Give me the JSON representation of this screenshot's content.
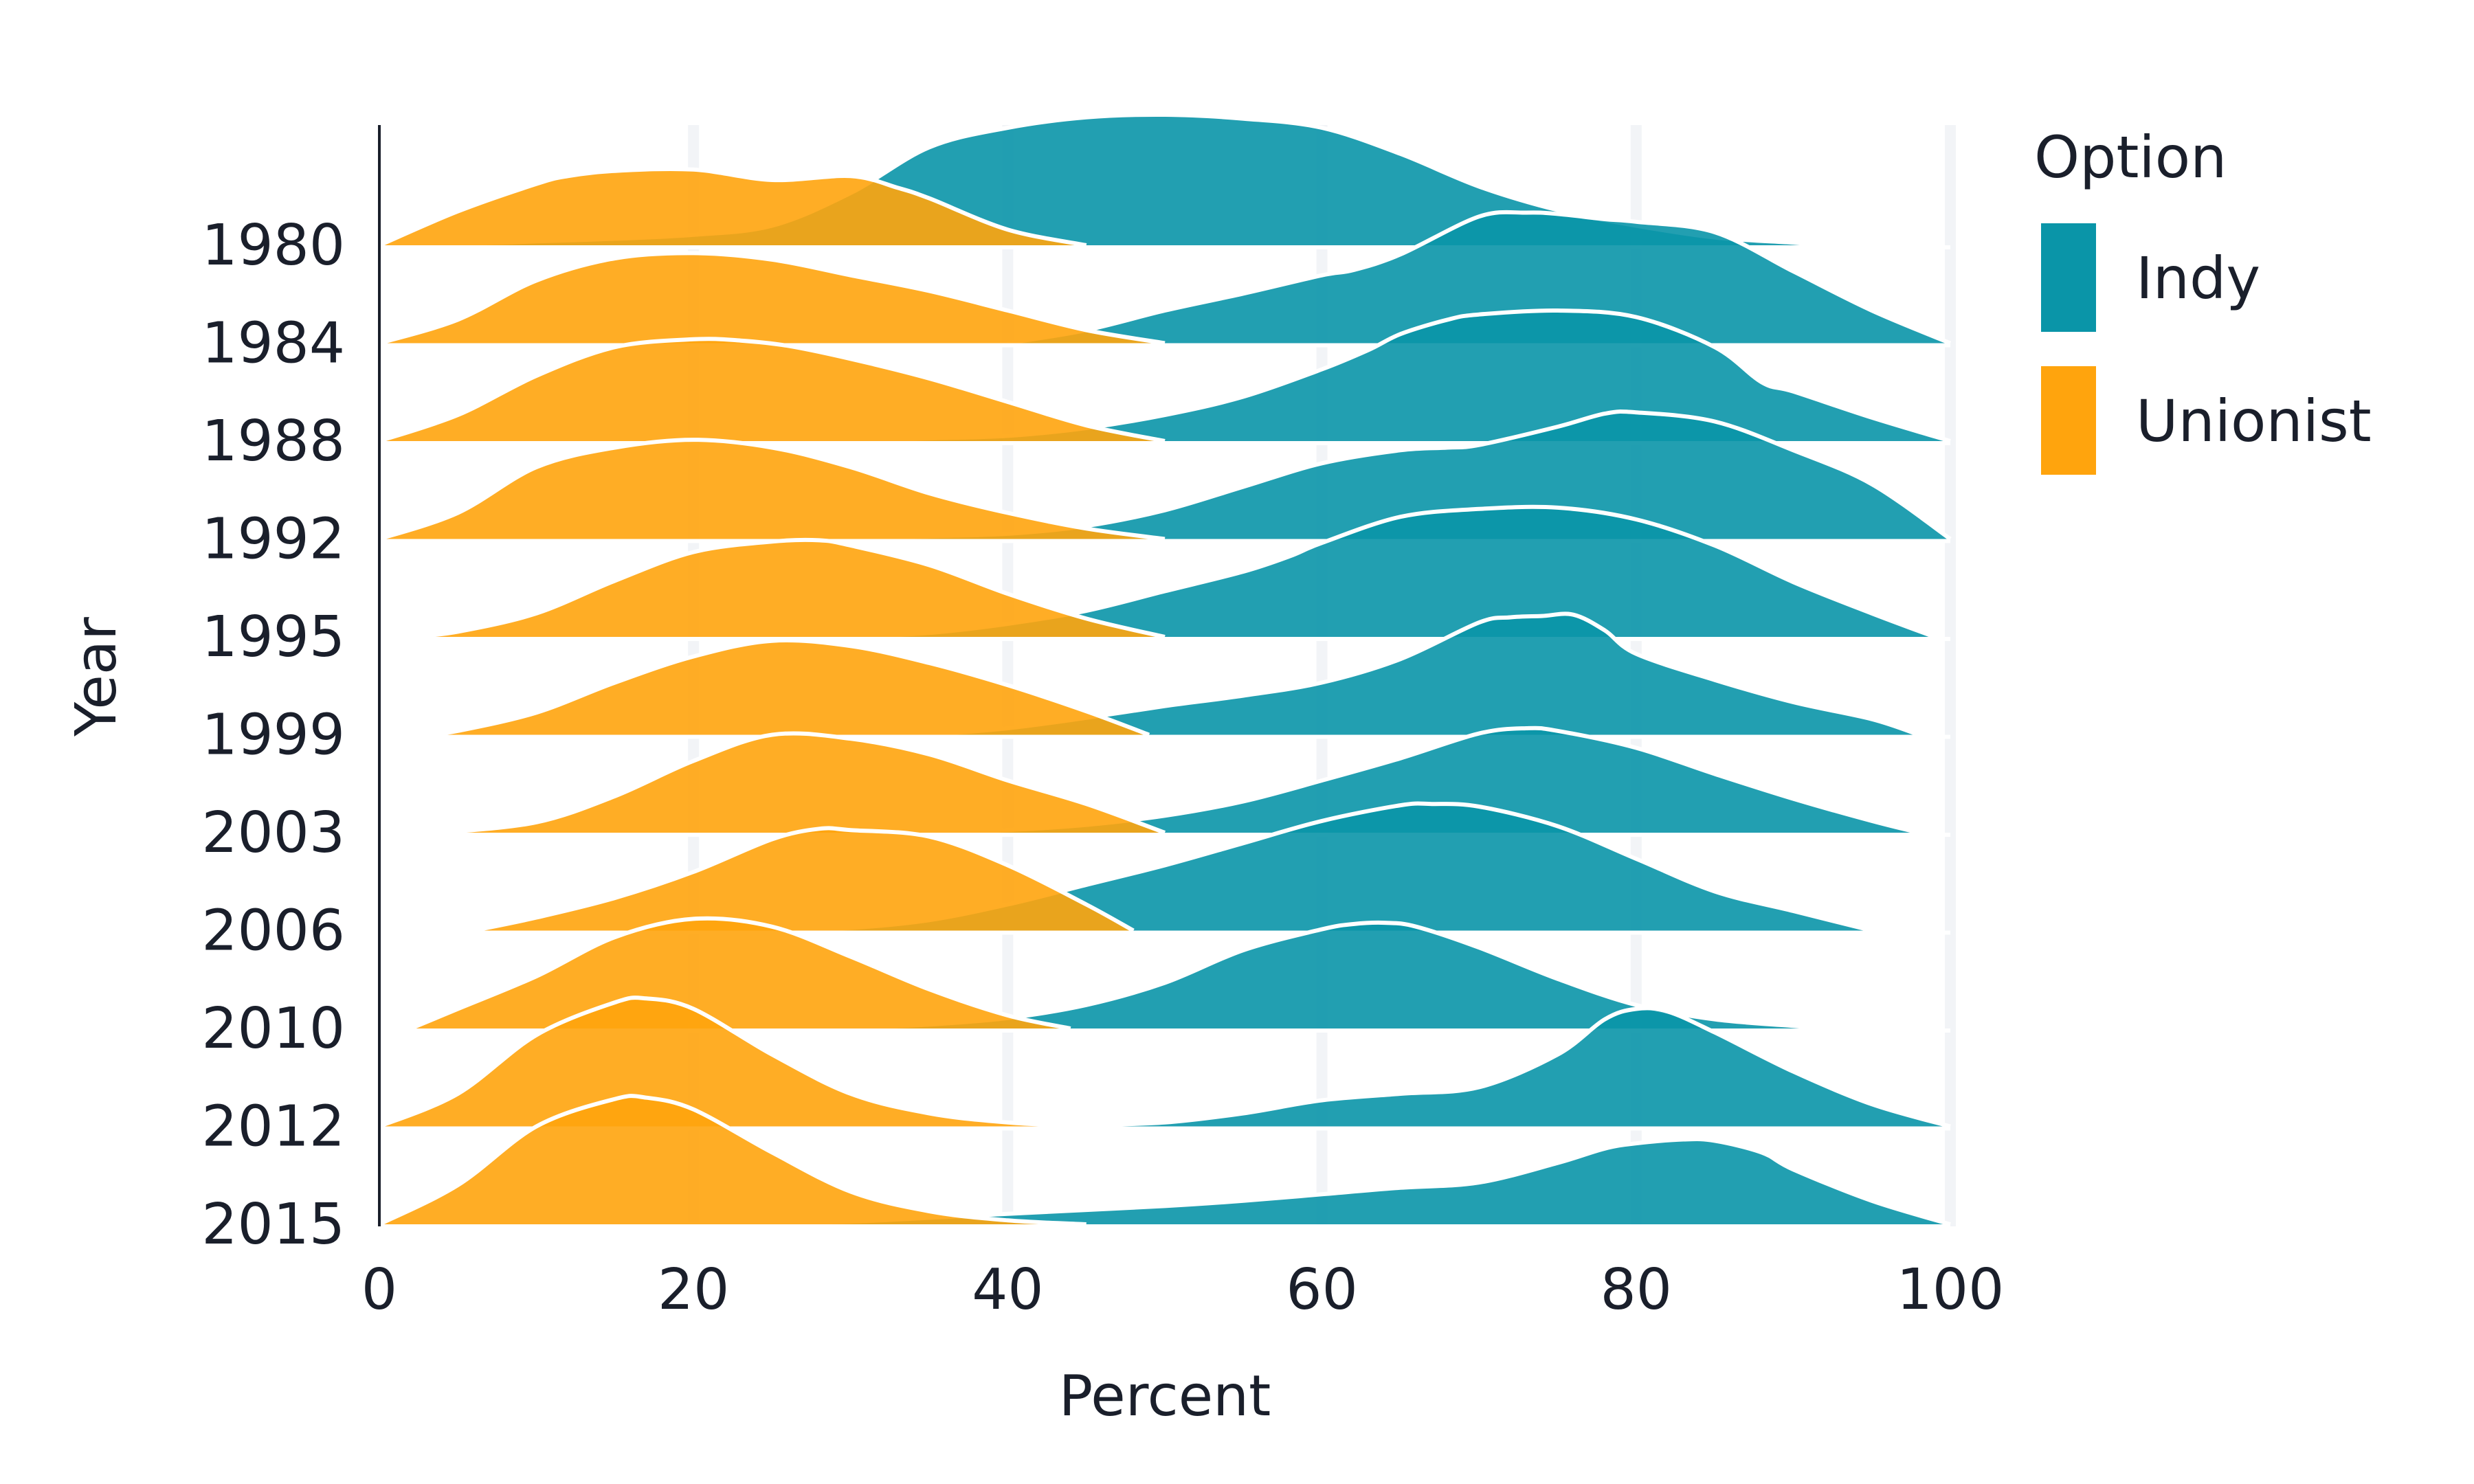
{
  "chart_data": {
    "type": "ridgeline",
    "xlabel": "Percent",
    "ylabel": "Year",
    "xlim": [
      0,
      100
    ],
    "x_ticks": [
      "0",
      "20",
      "40",
      "60",
      "80",
      "100"
    ],
    "grid": "vertical",
    "legend": {
      "title": "Option",
      "position": "right",
      "entries": [
        {
          "name": "Indy",
          "color": "#0a95a8"
        },
        {
          "name": "Unionist",
          "color": "#ffa40d"
        }
      ]
    },
    "categories": [
      "1980",
      "1984",
      "1988",
      "1992",
      "1995",
      "1999",
      "2003",
      "2006",
      "2010",
      "2012",
      "2015"
    ],
    "series": [
      {
        "name": "Indy",
        "color": "#0a95a8",
        "ridges": [
          {
            "year": "1980",
            "x": [
              3,
              5,
              8,
              10,
              15,
              20,
              25,
              30,
              35,
              40,
              45,
              50,
              55,
              60,
              65,
              70,
              75,
              80,
              85,
              90,
              92
            ],
            "density": [
              0.0,
              0.01,
              0.02,
              0.03,
              0.05,
              0.08,
              0.15,
              0.4,
              0.75,
              0.9,
              0.98,
              1.0,
              0.97,
              0.9,
              0.7,
              0.45,
              0.27,
              0.15,
              0.06,
              0.02,
              0.0
            ]
          },
          {
            "year": "1984",
            "x": [
              40,
              45,
              50,
              55,
              60,
              62,
              65,
              70,
              73,
              75,
              78,
              80,
              85,
              90,
              95,
              100
            ],
            "density": [
              0.0,
              0.1,
              0.25,
              0.38,
              0.52,
              0.56,
              0.68,
              0.97,
              1.0,
              0.99,
              0.95,
              0.93,
              0.85,
              0.55,
              0.25,
              0.0
            ]
          },
          {
            "year": "1988",
            "x": [
              30,
              35,
              40,
              45,
              50,
              55,
              60,
              63,
              65,
              68,
              70,
              75,
              80,
              85,
              88,
              90,
              95,
              100
            ],
            "density": [
              0.0,
              0.02,
              0.04,
              0.1,
              0.2,
              0.34,
              0.55,
              0.7,
              0.82,
              0.93,
              0.97,
              1.0,
              0.95,
              0.72,
              0.45,
              0.38,
              0.18,
              0.0
            ]
          },
          {
            "year": "1992",
            "x": [
              30,
              35,
              40,
              45,
              50,
              55,
              60,
              65,
              68,
              70,
              75,
              78,
              80,
              85,
              90,
              95,
              100
            ],
            "density": [
              0.0,
              0.02,
              0.04,
              0.1,
              0.22,
              0.4,
              0.58,
              0.68,
              0.7,
              0.72,
              0.86,
              0.96,
              0.97,
              0.9,
              0.68,
              0.42,
              0.0
            ]
          },
          {
            "year": "1995",
            "x": [
              30,
              35,
              40,
              45,
              50,
              55,
              58,
              60,
              65,
              70,
              75,
              80,
              85,
              90,
              95,
              99
            ],
            "density": [
              0.0,
              0.03,
              0.1,
              0.2,
              0.35,
              0.5,
              0.62,
              0.72,
              0.92,
              0.98,
              0.99,
              0.9,
              0.7,
              0.42,
              0.18,
              0.0
            ]
          },
          {
            "year": "1999",
            "x": [
              35,
              40,
              45,
              50,
              55,
              60,
              65,
              70,
              72,
              74,
              76,
              78,
              80,
              85,
              90,
              95,
              98
            ],
            "density": [
              0.0,
              0.05,
              0.13,
              0.22,
              0.3,
              0.4,
              0.58,
              0.86,
              0.9,
              0.91,
              0.92,
              0.8,
              0.62,
              0.42,
              0.25,
              0.12,
              0.0
            ]
          },
          {
            "year": "2003",
            "x": [
              35,
              40,
              45,
              50,
              55,
              60,
              65,
              70,
              73,
              75,
              80,
              85,
              90,
              95,
              98
            ],
            "density": [
              0.0,
              0.02,
              0.06,
              0.13,
              0.24,
              0.4,
              0.57,
              0.76,
              0.8,
              0.78,
              0.65,
              0.45,
              0.26,
              0.09,
              0.0
            ]
          },
          {
            "year": "2006",
            "x": [
              25,
              30,
              35,
              40,
              45,
              50,
              55,
              60,
              65,
              67,
              70,
              75,
              80,
              85,
              90,
              95
            ],
            "density": [
              0.0,
              0.02,
              0.08,
              0.2,
              0.35,
              0.5,
              0.67,
              0.84,
              0.96,
              0.97,
              0.95,
              0.8,
              0.55,
              0.3,
              0.15,
              0.0
            ]
          },
          {
            "year": "2010",
            "x": [
              30,
              35,
              40,
              45,
              50,
              55,
              60,
              62,
              64,
              66,
              70,
              75,
              80,
              85,
              90,
              92
            ],
            "density": [
              0.0,
              0.03,
              0.08,
              0.18,
              0.35,
              0.6,
              0.76,
              0.8,
              0.81,
              0.78,
              0.62,
              0.38,
              0.18,
              0.07,
              0.02,
              0.0
            ]
          },
          {
            "year": "2012",
            "x": [
              40,
              45,
              50,
              55,
              60,
              65,
              70,
              75,
              78,
              80,
              82,
              85,
              90,
              95,
              100
            ],
            "density": [
              0.0,
              0.01,
              0.03,
              0.1,
              0.2,
              0.25,
              0.3,
              0.55,
              0.82,
              0.9,
              0.88,
              0.72,
              0.42,
              0.17,
              0.0
            ]
          },
          {
            "year": "2015",
            "x": [
              18,
              25,
              30,
              35,
              40,
              45,
              50,
              55,
              60,
              65,
              70,
              75,
              78,
              80,
              83,
              85,
              88,
              90,
              95,
              100
            ],
            "density": [
              0.0,
              0.01,
              0.02,
              0.05,
              0.08,
              0.11,
              0.14,
              0.18,
              0.23,
              0.28,
              0.32,
              0.47,
              0.58,
              0.62,
              0.65,
              0.64,
              0.55,
              0.42,
              0.18,
              0.0
            ]
          }
        ]
      },
      {
        "name": "Unionist",
        "color": "#ffa40d",
        "ridges": [
          {
            "year": "1980",
            "x": [
              0,
              5,
              10,
              12,
              15,
              20,
              25,
              30,
              33,
              35,
              40,
              45
            ],
            "density": [
              0.0,
              0.26,
              0.47,
              0.53,
              0.57,
              0.58,
              0.5,
              0.53,
              0.44,
              0.36,
              0.12,
              0.0
            ]
          },
          {
            "year": "1984",
            "x": [
              0,
              5,
              10,
              15,
              20,
              25,
              30,
              35,
              40,
              45,
              50
            ],
            "density": [
              0.0,
              0.18,
              0.48,
              0.65,
              0.69,
              0.64,
              0.52,
              0.4,
              0.25,
              0.1,
              0.0
            ]
          },
          {
            "year": "1988",
            "x": [
              0,
              5,
              10,
              15,
              20,
              23,
              26,
              30,
              35,
              40,
              45,
              50
            ],
            "density": [
              0.0,
              0.2,
              0.5,
              0.72,
              0.78,
              0.77,
              0.73,
              0.63,
              0.48,
              0.3,
              0.12,
              0.0
            ]
          },
          {
            "year": "1992",
            "x": [
              0,
              5,
              10,
              15,
              20,
              25,
              30,
              35,
              40,
              45,
              50
            ],
            "density": [
              0.0,
              0.2,
              0.55,
              0.7,
              0.76,
              0.7,
              0.55,
              0.35,
              0.2,
              0.08,
              0.0
            ]
          },
          {
            "year": "1995",
            "x": [
              2,
              5,
              10,
              15,
              20,
              25,
              28,
              30,
              35,
              40,
              45,
              50
            ],
            "density": [
              0.0,
              0.04,
              0.18,
              0.43,
              0.65,
              0.73,
              0.74,
              0.7,
              0.55,
              0.33,
              0.14,
              0.0
            ]
          },
          {
            "year": "1999",
            "x": [
              3,
              5,
              10,
              15,
              20,
              25,
              30,
              35,
              40,
              45,
              49
            ],
            "density": [
              0.0,
              0.03,
              0.17,
              0.4,
              0.6,
              0.72,
              0.68,
              0.55,
              0.38,
              0.18,
              0.0
            ]
          },
          {
            "year": "2003",
            "x": [
              4,
              10,
              15,
              20,
              25,
              30,
              35,
              40,
              45,
              50
            ],
            "density": [
              0.0,
              0.08,
              0.28,
              0.55,
              0.75,
              0.72,
              0.6,
              0.4,
              0.22,
              0.0
            ]
          },
          {
            "year": "2006",
            "x": [
              6,
              10,
              15,
              20,
              25,
              28,
              30,
              35,
              40,
              45,
              48
            ],
            "density": [
              0.0,
              0.1,
              0.25,
              0.45,
              0.7,
              0.78,
              0.77,
              0.72,
              0.5,
              0.2,
              0.0
            ]
          },
          {
            "year": "2010",
            "x": [
              2,
              5,
              10,
              15,
              20,
              25,
              30,
              35,
              40,
              44
            ],
            "density": [
              0.0,
              0.15,
              0.4,
              0.7,
              0.84,
              0.78,
              0.55,
              0.3,
              0.1,
              0.0
            ]
          },
          {
            "year": "2012",
            "x": [
              0,
              5,
              10,
              15,
              17,
              20,
              25,
              30,
              35,
              40,
              45
            ],
            "density": [
              0.0,
              0.25,
              0.7,
              0.95,
              0.98,
              0.9,
              0.55,
              0.25,
              0.1,
              0.03,
              0.0
            ]
          },
          {
            "year": "2015",
            "x": [
              0,
              5,
              10,
              15,
              17,
              20,
              25,
              30,
              35,
              40,
              45
            ],
            "density": [
              0.0,
              0.3,
              0.75,
              0.96,
              0.97,
              0.88,
              0.55,
              0.25,
              0.1,
              0.03,
              0.0
            ]
          }
        ]
      }
    ]
  }
}
